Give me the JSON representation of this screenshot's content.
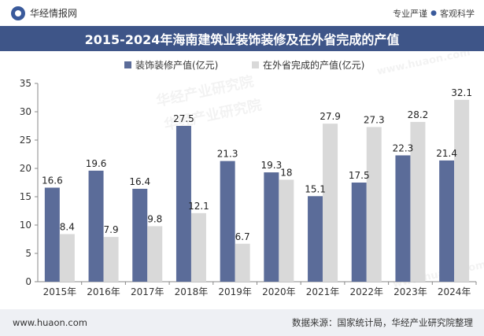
{
  "header": {
    "brand": "华经情报网",
    "tag1": "专业严谨",
    "tag_sep": "●",
    "tag2": "客观科学"
  },
  "title": "2015-2024年海南建筑业装饰装修及在外省完成的产值",
  "footer": {
    "url": "www.huaon.com",
    "source": "数据来源：国家统计局，华经产业研究院整理"
  },
  "watermarks": [
    "华经产业研究院",
    "www.huaon.com"
  ],
  "colors": {
    "series1": "#5b6c99",
    "series2": "#d9d9d9",
    "title_bg": "#3e5588"
  },
  "chart_data": {
    "type": "bar",
    "categories": [
      "2015年",
      "2016年",
      "2017年",
      "2018年",
      "2019年",
      "2020年",
      "2021年",
      "2022年",
      "2023年",
      "2024年"
    ],
    "series": [
      {
        "name": "装饰装修产值(亿元)",
        "values": [
          16.6,
          19.6,
          16.4,
          27.5,
          21.3,
          19.3,
          15.1,
          17.5,
          22.3,
          21.4
        ]
      },
      {
        "name": "在外省完成的产值(亿元)",
        "values": [
          8.4,
          7.9,
          9.8,
          12.1,
          6.7,
          18,
          27.9,
          27.3,
          28.2,
          32.1
        ]
      }
    ],
    "ylim": [
      0,
      35
    ],
    "yticks": [
      0,
      5,
      10,
      15,
      20,
      25,
      30,
      35
    ],
    "legend_position": "top-center",
    "grid": false
  }
}
